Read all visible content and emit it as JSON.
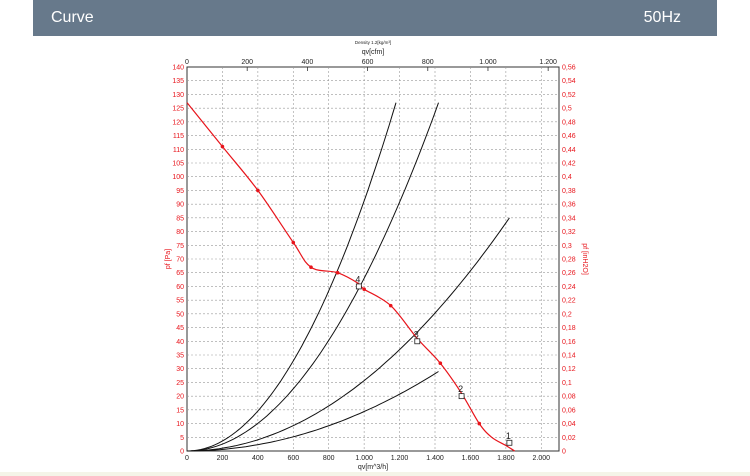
{
  "header": {
    "title": "Curve",
    "frequency": "50Hz"
  },
  "colors": {
    "header_bg": "#67798b",
    "pressure_curve": "#e8141b",
    "axis_red": "#e8141b",
    "system_curves": "#111111",
    "grid": "#999999"
  },
  "chart_data": {
    "type": "line",
    "title": "Density 1.2[kg/m³]",
    "top_axis_label": "qv[cfm]",
    "top_ticks": [
      "0",
      "200",
      "400",
      "600",
      "800",
      "1.000",
      "1.200"
    ],
    "xlabel": "qv[m^3/h]",
    "xlim": [
      0,
      2100
    ],
    "x_ticks": [
      "0",
      "200",
      "400",
      "600",
      "800",
      "1.000",
      "1.200",
      "1.400",
      "1.600",
      "1.800",
      "2.000"
    ],
    "ylabel": "pf [Pa]",
    "ylim": [
      0,
      140
    ],
    "y_ticks": [
      "0",
      "5",
      "10",
      "15",
      "20",
      "25",
      "30",
      "35",
      "40",
      "45",
      "50",
      "55",
      "60",
      "65",
      "70",
      "75",
      "80",
      "85",
      "90",
      "95",
      "100",
      "105",
      "110",
      "115",
      "120",
      "125",
      "130",
      "135",
      "140"
    ],
    "y2label": "pf [inH2O]",
    "y2_ticks": [
      "0",
      "0,02",
      "0,04",
      "0,06",
      "0,08",
      "0,1",
      "0,12",
      "0,14",
      "0,16",
      "0,18",
      "0,2",
      "0,22",
      "0,24",
      "0,26",
      "0,28",
      "0,3",
      "0,32",
      "0,34",
      "0,36",
      "0,38",
      "0,4",
      "0,42",
      "0,44",
      "0,46",
      "0,48",
      "0,5",
      "0,52",
      "0,54",
      "0,56"
    ],
    "grid": true,
    "pressure_curve": {
      "x": [
        0,
        200,
        400,
        600,
        700,
        850,
        970,
        1000,
        1150,
        1300,
        1430,
        1550,
        1650,
        1720,
        1800,
        1850
      ],
      "y": [
        127,
        111,
        95,
        76,
        67,
        65,
        61,
        59,
        53,
        41,
        32,
        21,
        10,
        5,
        2,
        0
      ],
      "markers_x": [
        200,
        400,
        600,
        700,
        850,
        1000,
        1150,
        1430,
        1650
      ],
      "markers_y": [
        111,
        95,
        76,
        67,
        65,
        59,
        53,
        32,
        10
      ]
    },
    "system_curves": [
      {
        "label": "1",
        "end_x": 1420,
        "end_y": 29,
        "point_x": 1560,
        "point_y": 22
      },
      {
        "label": "2",
        "end_x": 1820,
        "end_y": 85,
        "point_x": 1545,
        "point_y": 20
      },
      {
        "label": "3",
        "end_x": 1420,
        "end_y": 127,
        "point_x": 1300,
        "point_y": 40
      },
      {
        "label": "4",
        "end_x": 1180,
        "end_y": 127,
        "point_x": 970,
        "point_y": 60
      }
    ],
    "operating_points": [
      {
        "label": "4",
        "x": 970,
        "y": 60
      },
      {
        "label": "3",
        "x": 1300,
        "y": 40
      },
      {
        "label": "2",
        "x": 1550,
        "y": 20
      },
      {
        "label": "1",
        "x": 1820,
        "y": 3
      }
    ]
  }
}
